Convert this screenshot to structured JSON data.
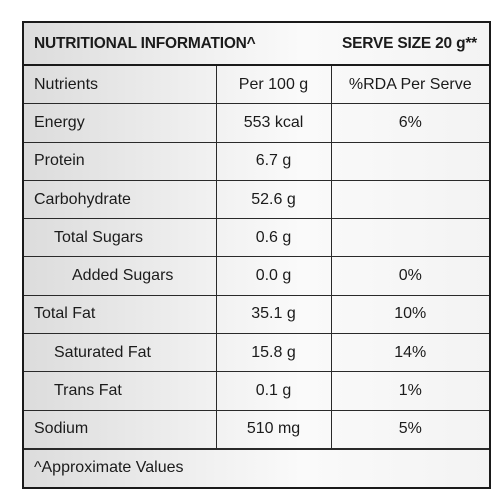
{
  "header": {
    "title": "NUTRITIONAL INFORMATION^",
    "serve_size": "SERVE SIZE 20 g**"
  },
  "columns": {
    "nutrients": "Nutrients",
    "per_100g": "Per 100 g",
    "rda": "%RDA Per Serve"
  },
  "rows": [
    {
      "name": "Energy",
      "per100": "553 kcal",
      "rda": "6%"
    },
    {
      "name": "Protein",
      "per100": "6.7 g",
      "rda": ""
    },
    {
      "name": "Carbohydrate",
      "per100": "52.6 g",
      "rda": ""
    },
    {
      "name": "Total Sugars",
      "per100": "0.6 g",
      "rda": ""
    },
    {
      "name": "Added Sugars",
      "per100": "0.0 g",
      "rda": "0%"
    },
    {
      "name": "Total Fat",
      "per100": "35.1 g",
      "rda": "10%"
    },
    {
      "name": "Saturated Fat",
      "per100": "15.8 g",
      "rda": "14%"
    },
    {
      "name": "Trans Fat",
      "per100": "0.1 g",
      "rda": "1%"
    },
    {
      "name": "Sodium",
      "per100": "510 mg",
      "rda": "5%"
    }
  ],
  "footer": {
    "note": "^Approximate Values"
  }
}
